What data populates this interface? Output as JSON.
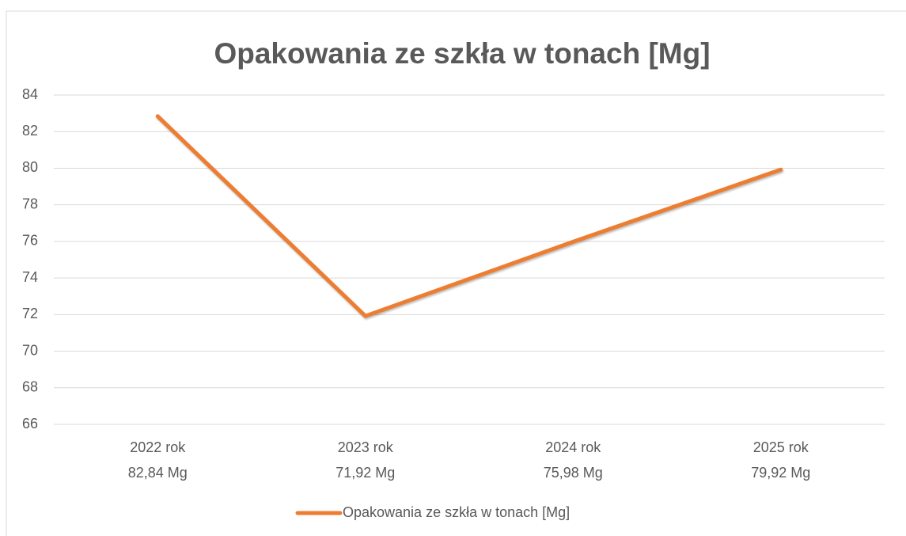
{
  "chart_data": {
    "type": "line",
    "title": "Opakowania ze szkła w tonach [Mg]",
    "categories": [
      "2022 rok",
      "2023 rok",
      "2024 rok",
      "2025 rok"
    ],
    "series": [
      {
        "name": "Opakowania ze szkła w tonach [Mg]",
        "color": "#ed7d31",
        "values": [
          82.84,
          71.92,
          75.98,
          79.92
        ],
        "value_labels": [
          "82,84 Mg",
          "71,92 Mg",
          "75,98 Mg",
          "79,92 Mg"
        ]
      }
    ],
    "ylim": [
      66,
      84
    ],
    "yticks": [
      66,
      68,
      70,
      72,
      74,
      76,
      78,
      80,
      82,
      84
    ],
    "grid": true,
    "legend": "bottom"
  }
}
